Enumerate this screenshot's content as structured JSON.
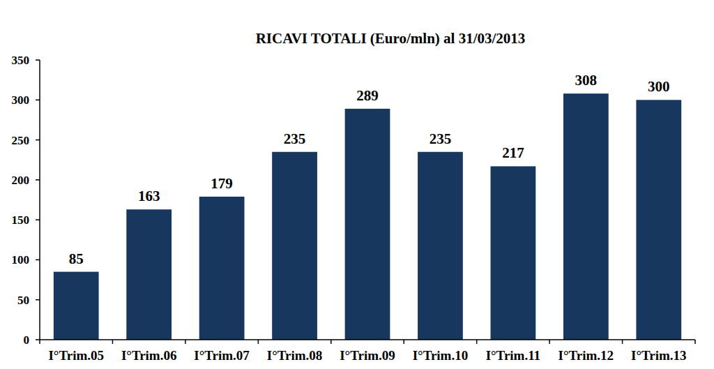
{
  "chart_data": {
    "type": "bar",
    "title": "RICAVI TOTALI (Euro/mln) al 31/03/2013",
    "categories": [
      "I°Trim.05",
      "I°Trim.06",
      "I°Trim.07",
      "I°Trim.08",
      "I°Trim.09",
      "I°Trim.10",
      "I°Trim.11",
      "I°Trim.12",
      "I°Trim.13"
    ],
    "values": [
      85,
      163,
      179,
      235,
      289,
      235,
      217,
      308,
      300
    ],
    "color": "#17375e",
    "ylim": [
      0,
      350
    ],
    "yticks": [
      0,
      50,
      100,
      150,
      200,
      250,
      300,
      350
    ],
    "grid": false,
    "data_labels": true
  }
}
